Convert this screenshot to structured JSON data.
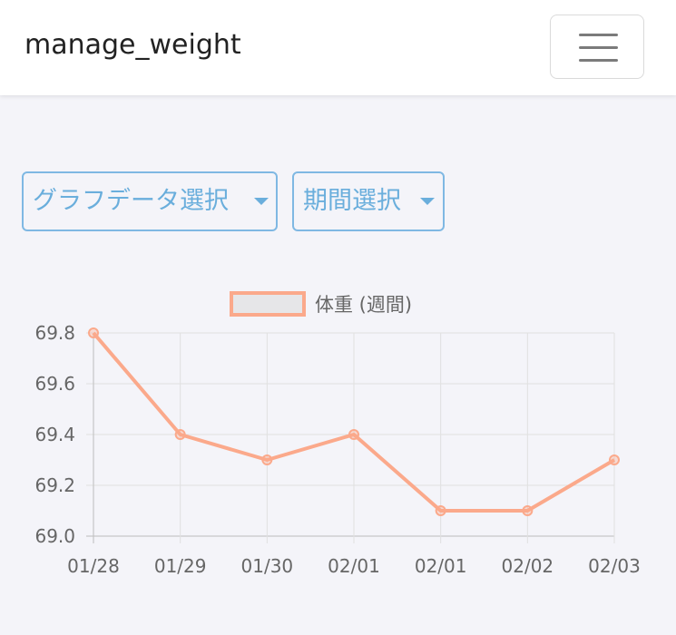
{
  "navbar": {
    "brand": "manage_weight",
    "toggle_icon": "hamburger-menu-icon"
  },
  "controls": {
    "graph_data_select": "グラフデータ選択",
    "period_select": "期間選択",
    "caret_icon": "caret-down-icon",
    "accent_color": "#6aaedc"
  },
  "chart_data": {
    "type": "line",
    "title": "",
    "xlabel": "",
    "ylabel": "",
    "categories": [
      "01/28",
      "01/29",
      "01/30",
      "02/01",
      "02/01",
      "02/02",
      "02/03"
    ],
    "series": [
      {
        "name": "体重 (週間)",
        "values": [
          69.8,
          69.4,
          69.3,
          69.4,
          69.1,
          69.1,
          69.3
        ],
        "color": "#fba98b"
      }
    ],
    "ylim": [
      69.0,
      69.8
    ],
    "yticks": [
      "69.8",
      "69.6",
      "69.4",
      "69.2",
      "69.0"
    ],
    "legend": "top-center",
    "grid": true
  }
}
